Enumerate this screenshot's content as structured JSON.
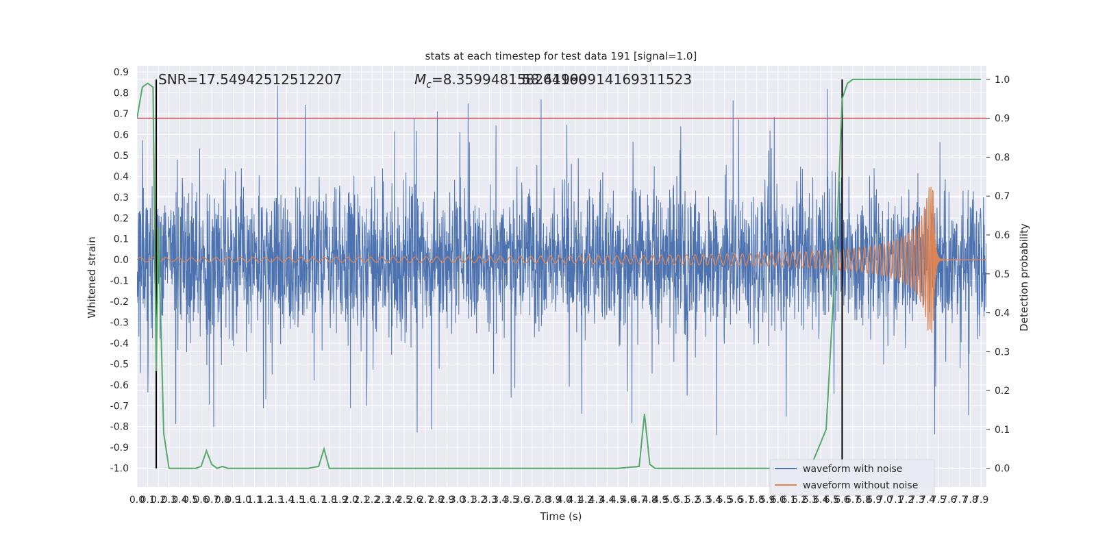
{
  "chart_data": {
    "type": "line",
    "title": "stats at each timestep for test data 191 [signal=1.0]",
    "xlabel": "Time (s)",
    "ylabel": "Whitened strain",
    "y2label": "Detection probability",
    "xlim": [
      0.0,
      7.95
    ],
    "ylim": [
      -1.09,
      0.93
    ],
    "y2lim": [
      -0.048,
      1.035
    ],
    "x_ticks": [
      "0.0",
      "0.1",
      "0.2",
      "0.3",
      "0.4",
      "0.5",
      "0.6",
      "0.7",
      "0.8",
      "0.9",
      "1.0",
      "1.1",
      "1.2",
      "1.3",
      "1.4",
      "1.5",
      "1.6",
      "1.7",
      "1.8",
      "1.9",
      "2.0",
      "2.1",
      "2.2",
      "2.3",
      "2.4",
      "2.5",
      "2.6",
      "2.7",
      "2.8",
      "2.9",
      "3.0",
      "3.1",
      "3.2",
      "3.3",
      "3.4",
      "3.5",
      "3.6",
      "3.7",
      "3.8",
      "3.9",
      "4.0",
      "4.1",
      "4.2",
      "4.3",
      "4.4",
      "4.5",
      "4.6",
      "4.7",
      "4.8",
      "4.9",
      "5.0",
      "5.1",
      "5.2",
      "5.3",
      "5.4",
      "5.5",
      "5.6",
      "5.7",
      "5.8",
      "5.9",
      "6.0",
      "6.1",
      "6.2",
      "6.3",
      "6.4",
      "6.5",
      "6.6",
      "6.7",
      "6.8",
      "6.9",
      "7.0",
      "7.1",
      "7.2",
      "7.3",
      "7.4",
      "7.5",
      "7.6",
      "7.7",
      "7.8",
      "7.9"
    ],
    "y_ticks": [
      "0.9",
      "0.8",
      "0.7",
      "0.6",
      "0.5",
      "0.4",
      "0.3",
      "0.2",
      "0.1",
      "0.0",
      "-0.1",
      "-0.2",
      "-0.3",
      "-0.4",
      "-0.5",
      "-0.6",
      "-0.7",
      "-0.8",
      "-0.9",
      "-1.0"
    ],
    "y2_ticks": [
      "1.0",
      "0.9",
      "0.8",
      "0.7",
      "0.6",
      "0.5",
      "0.4",
      "0.3",
      "0.2",
      "0.1",
      "0.0"
    ],
    "annotations": {
      "snr": "SNR=17.54942512512207",
      "mc_symbol": "M",
      "mc_subscript": "c",
      "mc_value": "=8.359948158264160",
      "mc_overlap": "58.41999914169311523"
    },
    "hlines": [
      {
        "axis": "y2",
        "y": 0.9,
        "color": "#c44e52"
      }
    ],
    "vlines": [
      {
        "x": 0.18,
        "color": "#000000"
      },
      {
        "x": 6.6,
        "color": "#000000"
      }
    ],
    "legend": {
      "placement": "lower-right",
      "entries": [
        {
          "label": "waveform with noise",
          "color": "#4c72b0"
        },
        {
          "label": "waveform without noise",
          "color": "#dd8452"
        }
      ]
    },
    "series": [
      {
        "name": "waveform with noise",
        "color": "#4c72b0",
        "kind": "noise",
        "std_approx": 0.17,
        "peak_min": -0.97,
        "peak_max": 0.84
      },
      {
        "name": "waveform without noise",
        "color": "#dd8452",
        "kind": "chirp",
        "merger_time": 7.45,
        "amplitude_min": 0.01,
        "amplitude_max": 0.35
      },
      {
        "name": "detection probability",
        "color": "#55a868",
        "axis": "y2",
        "x": [
          0.0,
          0.05,
          0.1,
          0.15,
          0.18,
          0.2,
          0.25,
          0.3,
          0.35,
          0.4,
          0.45,
          0.5,
          0.55,
          0.6,
          0.65,
          0.7,
          0.75,
          0.8,
          0.85,
          0.9,
          1.0,
          1.5,
          1.6,
          1.7,
          1.75,
          1.8,
          1.85,
          1.9,
          2.5,
          3.0,
          4.0,
          4.5,
          4.7,
          4.75,
          4.8,
          4.85,
          4.9,
          5.0,
          5.5,
          6.0,
          6.3,
          6.45,
          6.55,
          6.6,
          6.65,
          6.7,
          6.75,
          7.0,
          7.5,
          7.9
        ],
        "y": [
          0.9,
          0.98,
          0.99,
          0.98,
          0.25,
          0.62,
          0.09,
          0.0,
          0.0,
          0.0,
          0.0,
          0.0,
          0.0,
          0.005,
          0.045,
          0.01,
          0.0,
          0.005,
          0.0,
          0.0,
          0.0,
          0.0,
          0.0,
          0.005,
          0.05,
          0.0,
          0.0,
          0.0,
          0.0,
          0.0,
          0.0,
          0.0,
          0.005,
          0.14,
          0.01,
          0.0,
          0.0,
          0.0,
          0.0,
          0.0,
          0.0,
          0.1,
          0.6,
          0.95,
          0.99,
          1.0,
          1.0,
          1.0,
          1.0,
          1.0
        ]
      }
    ]
  }
}
